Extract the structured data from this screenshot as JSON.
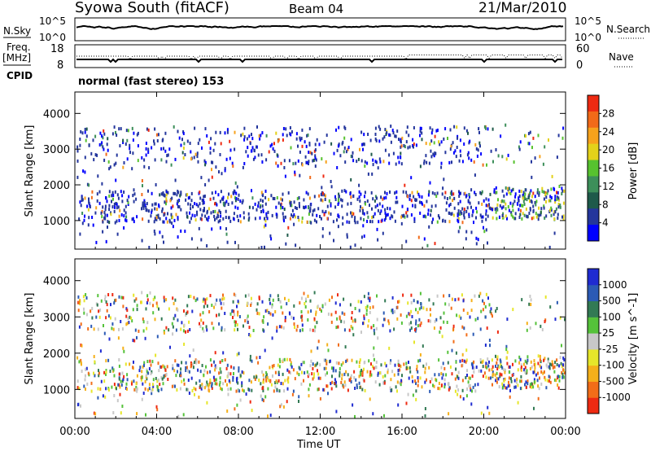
{
  "header": {
    "station": "Syowa South (fitACF)",
    "beam": "Beam 04",
    "date": "21/Mar/2010"
  },
  "noise_panel": {
    "left_label": "N.Sky",
    "left_ticks": [
      "10^5",
      "10^0"
    ],
    "right_label": "N.Search",
    "right_ticks": [
      "10^5",
      "10^0"
    ]
  },
  "freq_panel": {
    "left_label_1": "Freq.",
    "left_label_2": "[MHz]",
    "left_ticks": [
      "18",
      "8"
    ],
    "cpid_label": "CPID",
    "right_label": "Nave",
    "right_ticks": [
      "60",
      "0"
    ]
  },
  "cpid_text": "normal (fast stereo) 153",
  "x_ticks": [
    "00:00",
    "04:00",
    "08:00",
    "12:00",
    "16:00",
    "20:00",
    "00:00"
  ],
  "x_label": "Time UT",
  "colors": {
    "power": [
      "#0000ff",
      "#24369c",
      "#1e5a4a",
      "#3d8f5a",
      "#57c22f",
      "#e3d11a",
      "#f7a21c",
      "#f26a19",
      "#ee2a12"
    ],
    "velocity": [
      "#1f2bd1",
      "#2b5ab5",
      "#327a54",
      "#55c23a",
      "#c8c8c8",
      "#e6e62a",
      "#f5b01a",
      "#f26d18",
      "#ee2a12"
    ]
  },
  "chart_data": [
    {
      "type": "heatmap",
      "name": "power",
      "ylabel": "Slant Range [km]",
      "y_ticks": [
        1000,
        2000,
        3000,
        4000
      ],
      "ylim": [
        200,
        4600
      ],
      "xlim": [
        "00:00",
        "24:00"
      ],
      "colorbar_label": "Power [dB]",
      "colorbar_ticks": [
        4,
        8,
        12,
        16,
        20,
        24,
        28
      ],
      "colorbar_range": [
        0,
        32
      ],
      "scatter_bands_km": [
        [
          800,
          1800
        ],
        [
          2600,
          3600
        ]
      ]
    },
    {
      "type": "heatmap",
      "name": "velocity",
      "ylabel": "Slant Range [km]",
      "y_ticks": [
        1000,
        2000,
        3000,
        4000
      ],
      "ylim": [
        200,
        4600
      ],
      "xlim": [
        "00:00",
        "24:00"
      ],
      "colorbar_label": "Velocity [m s^-1]",
      "colorbar_ticks": [
        1000,
        500,
        100,
        25,
        -25,
        -100,
        -500,
        -1000
      ]
    }
  ]
}
